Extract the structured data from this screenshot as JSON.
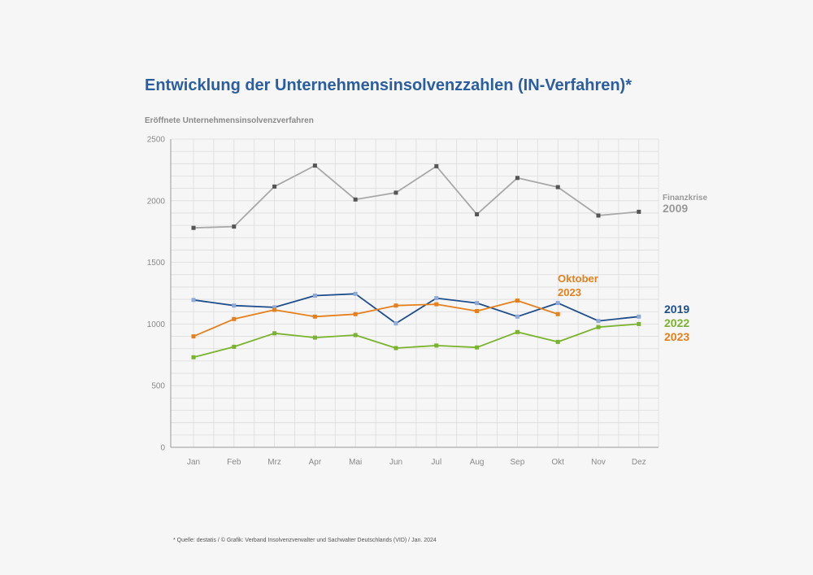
{
  "title": "Entwicklung der Unternehmensinsolvenzzahlen (IN-Verfahren)*",
  "footnote": "* Quelle: destatis / © Grafik: Verband Insolvenzverwalter und Sachwalter Deutschlands (VID) / Jan. 2024",
  "colors": {
    "background": "#f6f6f6",
    "title": "#2b5ea1",
    "grid": "#dcdcdc",
    "axis": "#9a9a9a",
    "tick": "#8a8a8a"
  },
  "chart_data": {
    "type": "line",
    "ylabel": "Eröffnete Unternehmensinsolvenzverfahren",
    "xlabel": "",
    "categories": [
      "Jan",
      "Feb",
      "Mrz",
      "Apr",
      "Mai",
      "Jun",
      "Jul",
      "Aug",
      "Sep",
      "Okt",
      "Nov",
      "Dez"
    ],
    "ylim": [
      0,
      2500
    ],
    "yticks": [
      "0",
      "500",
      "1000",
      "1500",
      "2000",
      "2500"
    ],
    "grid": true,
    "series": [
      {
        "name": "Finanzkrise 2009",
        "label_lines": [
          "Finanzkrise",
          "2009"
        ],
        "line_color": "#a8a8a8",
        "marker_color": "#555555",
        "label_color": "#9a9a9a",
        "values": [
          1780,
          1790,
          2115,
          2285,
          2010,
          2065,
          2280,
          1890,
          2185,
          2110,
          1880,
          1910
        ]
      },
      {
        "name": "2019",
        "label_lines": [
          "2019"
        ],
        "line_color": "#1f4e8c",
        "marker_color": "#8fa9d8",
        "label_color": "#1f4e8c",
        "values": [
          1195,
          1150,
          1135,
          1230,
          1245,
          1005,
          1210,
          1170,
          1060,
          1170,
          1025,
          1060
        ]
      },
      {
        "name": "Oktober 2023",
        "label_lines": [
          "Oktober",
          "2023"
        ],
        "line_color": "#e5801c",
        "marker_color": "#e5801c",
        "label_color": "#e5801c",
        "values": [
          900,
          1040,
          1115,
          1060,
          1080,
          1150,
          1160,
          1105,
          1190,
          1080,
          null,
          null
        ]
      },
      {
        "name": "2022",
        "label_lines": [
          "2022"
        ],
        "line_color": "#7ab32e",
        "marker_color": "#7ab32e",
        "label_color": "#7ab32e",
        "values": [
          730,
          815,
          925,
          890,
          910,
          805,
          825,
          810,
          935,
          855,
          975,
          1000
        ]
      }
    ],
    "side_labels": [
      {
        "text": "2023",
        "color": "#e5801c"
      }
    ]
  }
}
